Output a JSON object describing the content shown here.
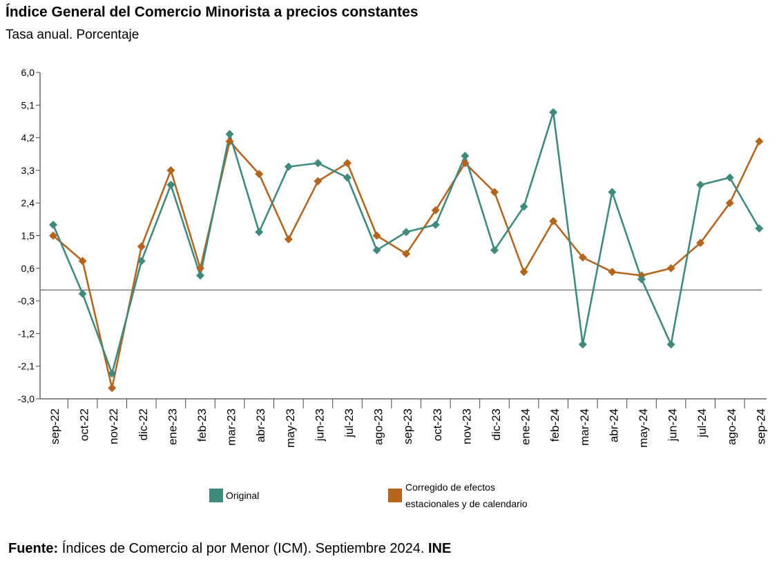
{
  "chart_data": {
    "type": "line",
    "title": "Índice General del Comercio Minorista a precios constantes",
    "subtitle": "Tasa anual. Porcentaje",
    "categories": [
      "sep-22",
      "oct-22",
      "nov-22",
      "dic-22",
      "ene-23",
      "feb-23",
      "mar-23",
      "abr-23",
      "may-23",
      "jun-23",
      "jul-23",
      "ago-23",
      "sep-23",
      "oct-23",
      "nov-23",
      "dic-23",
      "ene-24",
      "feb-24",
      "mar-24",
      "abr-24",
      "may-24",
      "jun-24",
      "jul-24",
      "ago-24",
      "sep-24"
    ],
    "yticks": [
      "6,0",
      "5,1",
      "4,2",
      "3,3",
      "2,4",
      "1,5",
      "0,6",
      "-0,3",
      "-1,2",
      "-2,1",
      "-3,0"
    ],
    "ylim": [
      -3.0,
      6.0
    ],
    "series": [
      {
        "name": "Original",
        "color": "#3e8a7d",
        "values": [
          1.8,
          -0.1,
          -2.3,
          0.8,
          2.9,
          0.4,
          4.3,
          1.6,
          3.4,
          3.5,
          3.1,
          1.1,
          1.6,
          1.8,
          3.7,
          1.1,
          2.3,
          4.9,
          -1.5,
          2.7,
          0.3,
          -1.5,
          2.9,
          3.1,
          1.7
        ]
      },
      {
        "name": "Corregido de efectos estacionales y de calendario",
        "color": "#b5651d",
        "values": [
          1.5,
          0.8,
          -2.7,
          1.2,
          3.3,
          0.6,
          4.1,
          3.2,
          1.4,
          3.0,
          3.5,
          1.5,
          1.0,
          2.2,
          3.5,
          2.7,
          0.5,
          1.9,
          0.9,
          0.5,
          0.4,
          0.6,
          1.3,
          2.4,
          4.1
        ]
      }
    ],
    "legend": {
      "position": "bottom",
      "items": [
        {
          "line1": "Original",
          "line2": ""
        },
        {
          "line1": "Corregido de efectos",
          "line2": "estacionales y de calendario"
        }
      ]
    }
  },
  "footer": {
    "label": "Fuente:",
    "text": " Índices de Comercio al por Menor (ICM).  Septiembre 2024. ",
    "org": "INE"
  }
}
